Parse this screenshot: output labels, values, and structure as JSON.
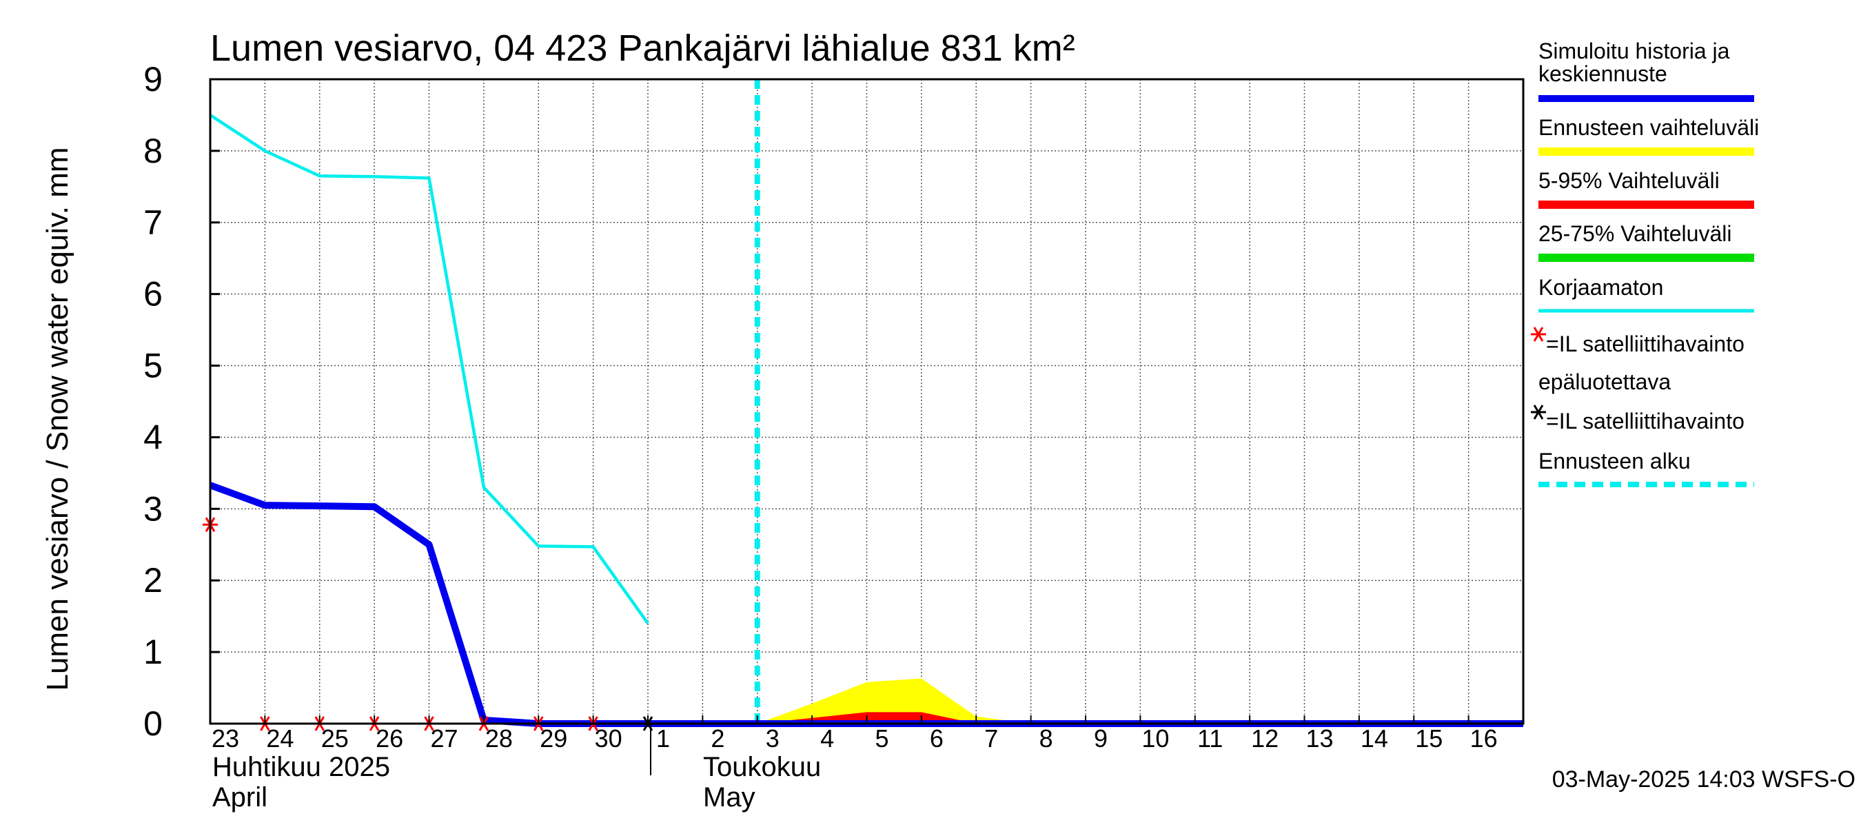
{
  "chart_data": {
    "type": "line",
    "title": "Lumen vesiarvo, 04 423 Pankajärvi lähialue 831 km²",
    "ylabel": "Lumen vesiarvo / Snow water equiv.    mm",
    "ylim": [
      0,
      9
    ],
    "yticks": [
      "0",
      "1",
      "2",
      "3",
      "4",
      "5",
      "6",
      "7",
      "8",
      "9"
    ],
    "x_range_days": [
      0,
      24
    ],
    "x_tick_labels": [
      "23",
      "24",
      "25",
      "26",
      "27",
      "28",
      "29",
      "30",
      "1",
      "2",
      "3",
      "4",
      "5",
      "6",
      "7",
      "8",
      "9",
      "10",
      "11",
      "12",
      "13",
      "14",
      "15",
      "16"
    ],
    "month_labels": {
      "april_fi": "Huhtikuu  2025",
      "april_en": "April",
      "may_fi": "Toukokuu",
      "may_en": "May"
    },
    "footer": "03-May-2025 14:03 WSFS-O",
    "forecast_start_day": 10,
    "month_boundary_day": 8,
    "legend": {
      "simulated_line1": "Simuloitu historia ja",
      "simulated_line2": "keskiennuste",
      "forecast_range": "Ennusteen vaihteluväli",
      "p5_95": "5-95% Vaihteluväli",
      "p25_75": "25-75% Vaihteluväli",
      "uncorrected": "Korjaamaton",
      "satellite_obs": "=IL satelliittihavainto",
      "unreliable": "epäluotettava",
      "satellite_obs2": "=IL satelliittihavainto",
      "forecast_start": "Ennusteen alku"
    },
    "series": [
      {
        "name": "Simuloitu historia ja keskiennuste",
        "color": "#0000ee",
        "x": [
          0,
          1,
          2,
          3,
          4,
          5,
          6,
          7,
          8,
          24
        ],
        "y": [
          3.33,
          3.05,
          3.04,
          3.03,
          2.5,
          0.05,
          0.0,
          0.0,
          0.0,
          0.0
        ]
      },
      {
        "name": "Korjaamaton",
        "color": "#00eeee",
        "x": [
          0,
          1,
          2,
          3,
          4,
          5,
          6,
          7,
          8
        ],
        "y": [
          8.5,
          8.0,
          7.65,
          7.64,
          7.62,
          3.3,
          2.48,
          2.47,
          1.4
        ]
      },
      {
        "name": "Ennusteen vaihteluväli",
        "color": "#ffff00",
        "x": [
          10,
          11,
          12,
          13,
          14,
          15,
          24
        ],
        "y": [
          0.0,
          0.28,
          0.58,
          0.63,
          0.1,
          0.0,
          0.0
        ]
      },
      {
        "name": "5-95% Vaihteluväli",
        "color": "#ff0000",
        "x": [
          10,
          11,
          12,
          13,
          14,
          24
        ],
        "y": [
          0.0,
          0.08,
          0.16,
          0.16,
          0.0,
          0.0
        ]
      },
      {
        "name": "25-75% Vaihteluväli",
        "color": "#00dd00",
        "x": [],
        "y": []
      }
    ],
    "satellite_observations_red": {
      "x": [
        0,
        1,
        2,
        3,
        4,
        5,
        6,
        7
      ],
      "y": [
        2.78,
        0,
        0,
        0,
        0,
        0,
        0,
        0
      ]
    },
    "satellite_observations_black": {
      "x": [
        8
      ],
      "y": [
        0
      ]
    },
    "colors": {
      "simulated": "#0000ee",
      "uncorrected": "#00eeee",
      "forecast_range": "#ffff00",
      "p5_95": "#ff0000",
      "p25_75": "#00dd00",
      "forecast_start": "#00eeee",
      "obs_red": "#ff0000",
      "obs_black": "#000000"
    }
  }
}
